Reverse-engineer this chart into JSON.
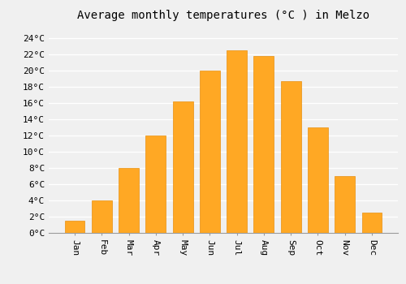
{
  "title": "Average monthly temperatures (°C ) in Melzo",
  "months": [
    "Jan",
    "Feb",
    "Mar",
    "Apr",
    "May",
    "Jun",
    "Jul",
    "Aug",
    "Sep",
    "Oct",
    "Nov",
    "Dec"
  ],
  "temperatures": [
    1.5,
    4.0,
    8.0,
    12.0,
    16.2,
    20.0,
    22.5,
    21.8,
    18.7,
    13.0,
    7.0,
    2.5
  ],
  "bar_color": "#FFA824",
  "bar_edge_color": "#E89010",
  "background_color": "#F0F0F0",
  "grid_color": "#FFFFFF",
  "yticks": [
    0,
    2,
    4,
    6,
    8,
    10,
    12,
    14,
    16,
    18,
    20,
    22,
    24
  ],
  "ylim": [
    0,
    25.5
  ],
  "title_fontsize": 10,
  "tick_fontsize": 8,
  "font_family": "monospace"
}
